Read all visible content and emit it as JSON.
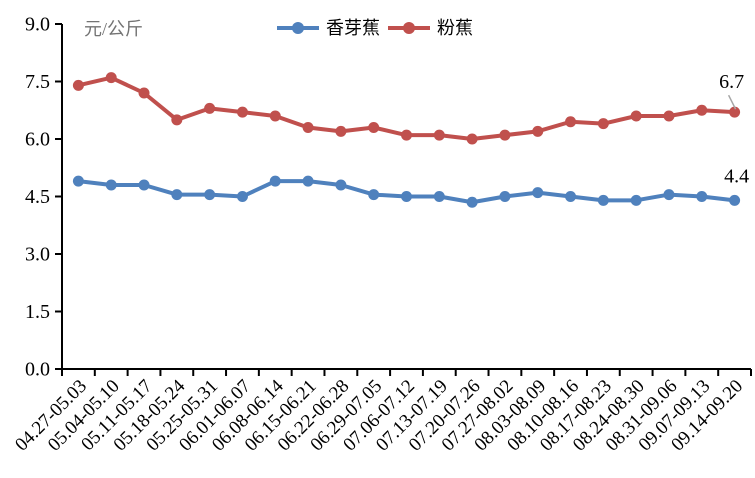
{
  "chart_data": {
    "type": "line",
    "title": "",
    "unit_label": "元/公斤",
    "xlabel": "",
    "ylabel": "",
    "ylim": [
      0,
      9
    ],
    "ytick_step": 1.5,
    "ytick_labels": [
      "0.0",
      "1.5",
      "3.0",
      "4.5",
      "6.0",
      "7.5",
      "9.0"
    ],
    "grid": false,
    "legend_position": "top-center",
    "axis_color": "#000000",
    "unit_label_color": "#737373",
    "leader_line_color": "#a6a6a6",
    "categories": [
      "04.27-05.03",
      "05.04-05.10",
      "05.11-05.17",
      "05.18-05.24",
      "05.25-05.31",
      "06.01-06.07",
      "06.08-06.14",
      "06.15-06.21",
      "06.22-06.28",
      "06.29-07.05",
      "07.06-07.12",
      "07.13-07.19",
      "07.20-07.26",
      "07.27-08.02",
      "08.03-08.09",
      "08.10-08.16",
      "08.17-08.23",
      "08.24-08.30",
      "08.31-09.06",
      "09.07-09.13",
      "09.14-09.20"
    ],
    "series": [
      {
        "name": "香芽蕉",
        "color": "#4f81bd",
        "end_label": "4.4",
        "values": [
          4.9,
          4.8,
          4.8,
          4.55,
          4.55,
          4.5,
          4.9,
          4.9,
          4.8,
          4.55,
          4.5,
          4.5,
          4.35,
          4.5,
          4.6,
          4.5,
          4.4,
          4.4,
          4.55,
          4.5,
          4.4
        ]
      },
      {
        "name": "粉蕉",
        "color": "#c0504d",
        "end_label": "6.7",
        "values": [
          7.4,
          7.6,
          7.2,
          6.5,
          6.8,
          6.7,
          6.6,
          6.3,
          6.2,
          6.3,
          6.1,
          6.1,
          6.0,
          6.1,
          6.2,
          6.45,
          6.4,
          6.6,
          6.6,
          6.75,
          6.7
        ]
      }
    ]
  }
}
